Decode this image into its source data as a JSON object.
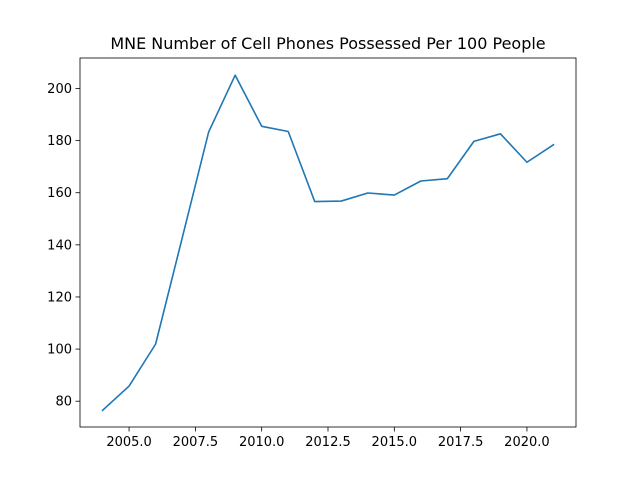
{
  "chart_data": {
    "type": "line",
    "title": "MNE Number of Cell Phones Possessed Per 100 People",
    "xlabel": "",
    "ylabel": "",
    "xlim": [
      2003.15,
      2021.85
    ],
    "ylim": [
      70.1,
      211.7
    ],
    "x_ticks": [
      2005.0,
      2007.5,
      2010.0,
      2012.5,
      2015.0,
      2017.5,
      2020.0
    ],
    "x_tick_labels": [
      "2005.0",
      "2007.5",
      "2010.0",
      "2012.5",
      "2015.0",
      "2017.5",
      "2020.0"
    ],
    "y_ticks": [
      80,
      100,
      120,
      140,
      160,
      180,
      200
    ],
    "y_tick_labels": [
      "80",
      "100",
      "120",
      "140",
      "160",
      "180",
      "200"
    ],
    "grid": false,
    "series": [
      {
        "color": "#1f77b4",
        "x": [
          2004,
          2005,
          2006,
          2007,
          2008,
          2009,
          2010,
          2011,
          2012,
          2013,
          2014,
          2015,
          2016,
          2017,
          2018,
          2019,
          2020,
          2021
        ],
        "y": [
          76.5,
          85.8,
          101.9,
          142.5,
          183.3,
          205.1,
          185.5,
          183.5,
          156.6,
          156.8,
          159.9,
          159.1,
          164.5,
          165.4,
          179.7,
          182.6,
          171.7,
          178.4
        ]
      }
    ]
  }
}
